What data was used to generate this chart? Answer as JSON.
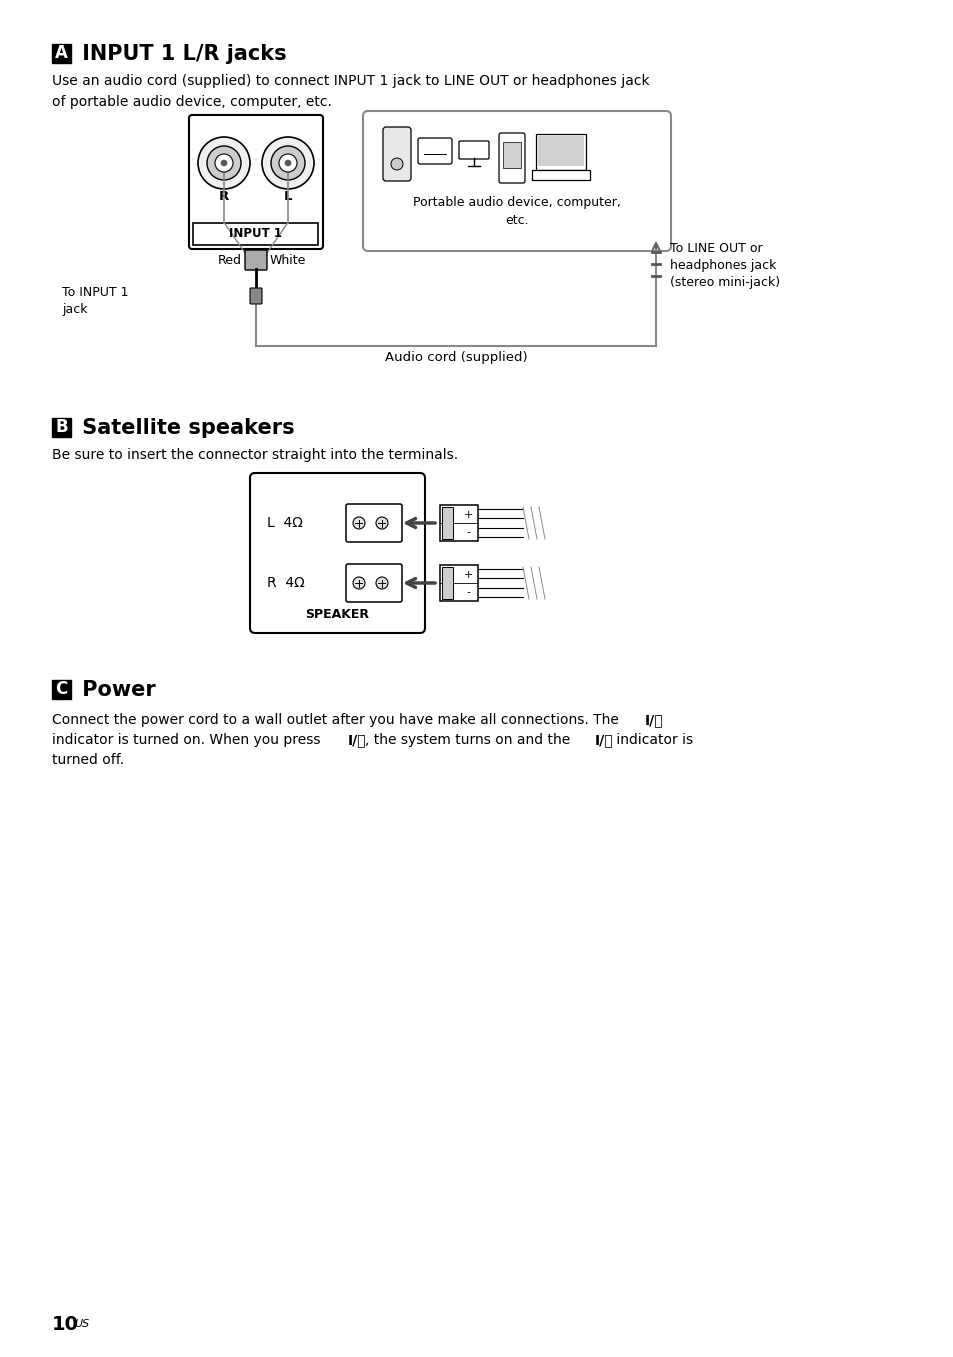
{
  "bg_color": "#ffffff",
  "section_A_label": "A",
  "section_A_title": " INPUT 1 L/R jacks",
  "section_A_body": "Use an audio cord (supplied) to connect INPUT 1 jack to LINE OUT or headphones jack\nof portable audio device, computer, etc.",
  "section_B_label": "B",
  "section_B_title": " Satellite speakers",
  "section_B_body": "Be sure to insert the connector straight into the terminals.",
  "section_C_label": "C",
  "section_C_title": " Power",
  "section_C_line1a": "Connect the power cord to a wall outlet after you have make all connections. The ",
  "section_C_bold1": "I/⏻",
  "section_C_line2a": "indicator is turned on. When you press ",
  "section_C_bold2": "I/⏻",
  "section_C_line2b": ", the system turns on and the ",
  "section_C_bold3": "I/⏻",
  "section_C_line2c": " indicator is",
  "section_C_line3": "turned off.",
  "page_num": "10",
  "page_suffix": "US",
  "portable_device_text": "Portable audio device, computer,\netc.",
  "audio_cord_text": "Audio cord (supplied)",
  "to_line_out_text": "To LINE OUT or\nheadphones jack\n(stereo mini-jack)",
  "to_input1_text": "To INPUT 1\njack",
  "red_text": "Red",
  "white_text": "White",
  "input1_text": "INPUT 1",
  "R_text": "R",
  "L_text": "L",
  "speaker_text": "SPEAKER",
  "L4ohm_text": "L  4Ω",
  "R4ohm_text": "R  4Ω"
}
